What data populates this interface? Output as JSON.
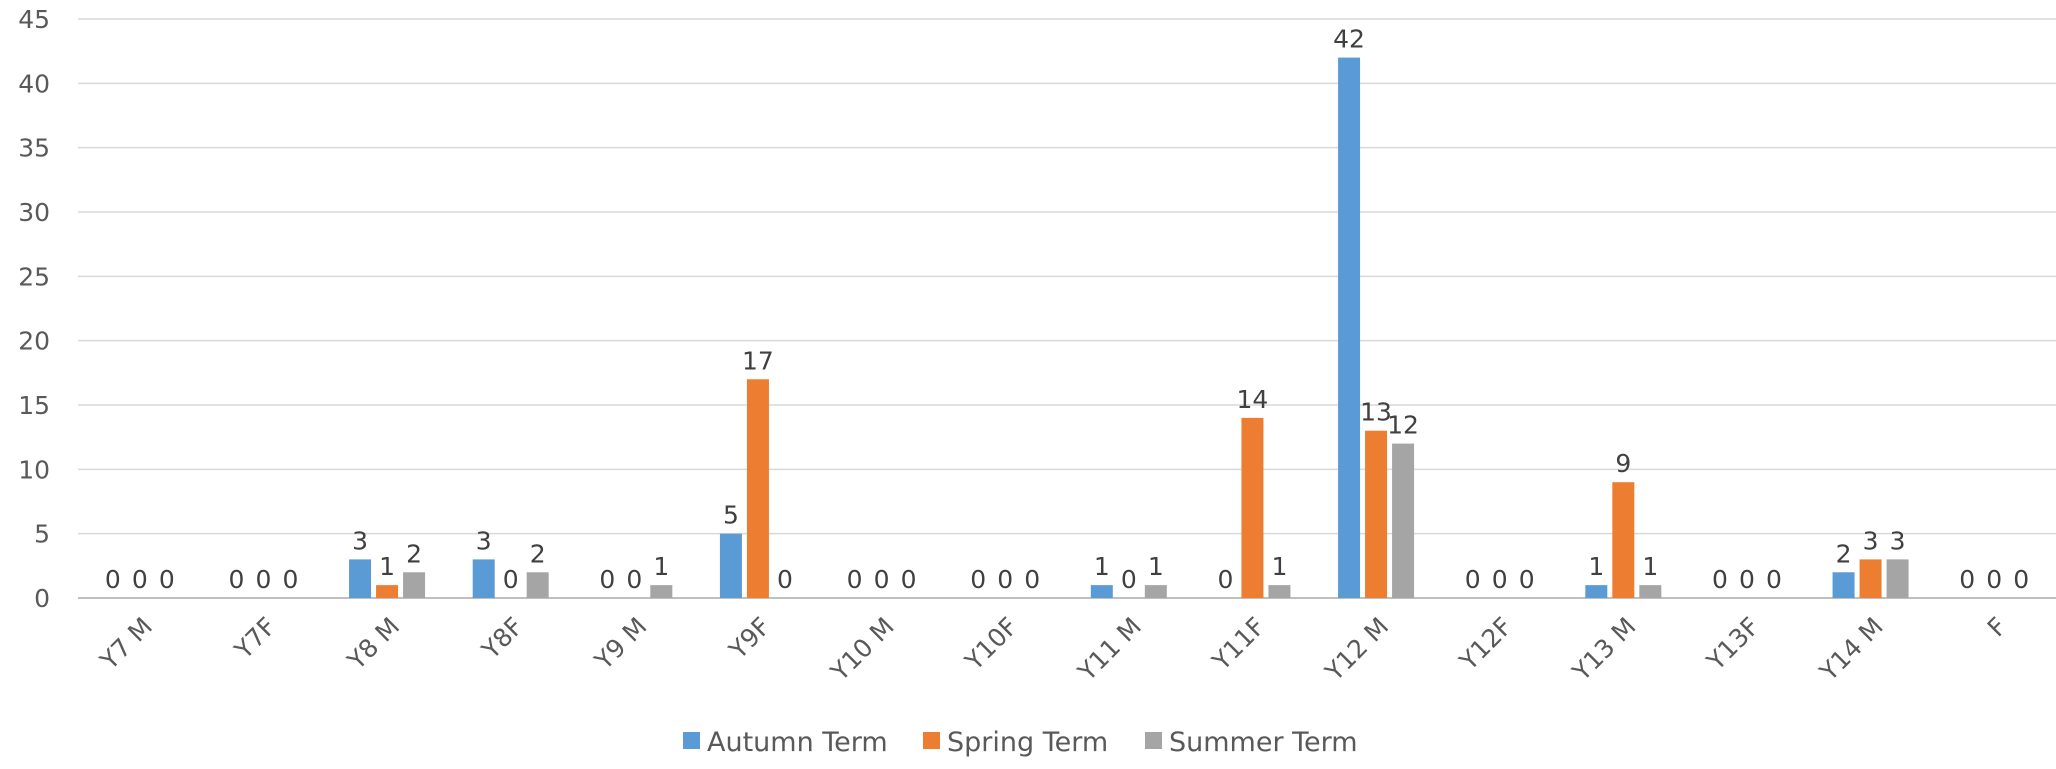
{
  "chart_data": {
    "type": "bar",
    "categories": [
      "Y7 M",
      "Y7F",
      "Y8 M",
      "Y8F",
      "Y9 M",
      "Y9F",
      "Y10 M",
      "Y10F",
      "Y11 M",
      "Y11F",
      "Y12 M",
      "Y12F",
      "Y13 M",
      "Y13F",
      "Y14 M",
      "F"
    ],
    "series": [
      {
        "name": "Autumn Term",
        "color": "#5b9bd5",
        "values": [
          0,
          0,
          3,
          3,
          0,
          5,
          0,
          0,
          1,
          0,
          42,
          0,
          1,
          0,
          2,
          0
        ]
      },
      {
        "name": "Spring Term",
        "color": "#ed7d31",
        "values": [
          0,
          0,
          1,
          0,
          0,
          17,
          0,
          0,
          0,
          14,
          13,
          0,
          9,
          0,
          3,
          0
        ]
      },
      {
        "name": "Summer Term",
        "color": "#a5a5a5",
        "values": [
          0,
          0,
          2,
          2,
          1,
          0,
          0,
          0,
          1,
          1,
          12,
          0,
          1,
          0,
          3,
          0
        ]
      }
    ],
    "yticks": [
      "0",
      "5",
      "10",
      "15",
      "20",
      "25",
      "30",
      "35",
      "40",
      "45"
    ],
    "ylim": [
      0,
      45
    ],
    "grid": true,
    "legend_position": "bottom",
    "data_labels": true
  }
}
